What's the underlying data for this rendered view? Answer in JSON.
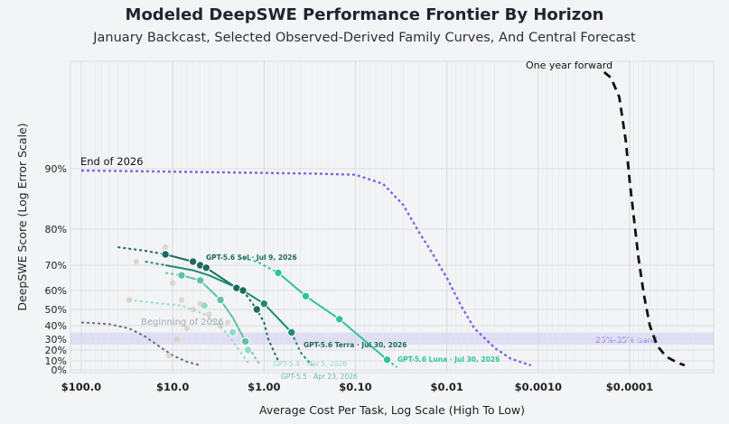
{
  "title": "Modeled DeepSWE Performance Frontier By Horizon",
  "subtitle": "January Backcast, Selected Observed-Derived Family Curves, And Central Forecast",
  "chart_data": {
    "type": "line",
    "xlabel": "Average Cost Per Task, Log Scale (High To Low)",
    "ylabel": "DeepSWE Score (Log Error Scale)",
    "x_scale": "log",
    "x_direction": "reversed (high to low)",
    "xlim": [
      100,
      2e-05
    ],
    "x_ticks": [
      {
        "value": 100,
        "label": "$100.0"
      },
      {
        "value": 10,
        "label": "$10.0"
      },
      {
        "value": 1,
        "label": "$1.00"
      },
      {
        "value": 0.1,
        "label": "$0.10"
      },
      {
        "value": 0.01,
        "label": "$0.01"
      },
      {
        "value": 0.001,
        "label": "$0.0010"
      },
      {
        "value": 0.0001,
        "label": "$0.0001"
      }
    ],
    "y_scale": "log error",
    "y_ticks": [
      {
        "value": 90,
        "label": "90%"
      },
      {
        "value": 80,
        "label": "80%"
      },
      {
        "value": 70,
        "label": "70%"
      },
      {
        "value": 60,
        "label": "60%"
      },
      {
        "value": 50,
        "label": "50%"
      },
      {
        "value": 40,
        "label": "40%"
      },
      {
        "value": 30,
        "label": "30%"
      },
      {
        "value": 20,
        "label": "20%"
      },
      {
        "value": 10,
        "label": "10%"
      },
      {
        "value": 0,
        "label": "0%"
      }
    ],
    "grid": true,
    "band": {
      "label": "25%-35% band",
      "low": 25,
      "high": 35,
      "color": "#8b7cf0"
    },
    "colors": {
      "end2026": "#7c65ea",
      "begin2026": "#6b6b80",
      "year": "#111111",
      "sol": "#1c6b5e",
      "terra": "#1f8a74",
      "luna": "#2cc49a",
      "gpt54": "#8fdcc7",
      "gpt55": "#5fc0a3"
    },
    "series": [
      {
        "name": "One year forward",
        "style": "dashed",
        "x": [
          0.00019,
          0.00016,
          0.00013,
          0.00011,
          0.0001,
          9e-05,
          8e-05,
          7e-05,
          6e-05,
          5e-05,
          4e-05,
          3e-05,
          2.5e-05
        ],
        "y": [
          97,
          96.6,
          95.2,
          92,
          88,
          82,
          72,
          58,
          40,
          24,
          14,
          8,
          5
        ]
      },
      {
        "name": "End of 2026",
        "style": "dotted",
        "x": [
          100,
          30,
          10,
          3,
          1,
          0.3,
          0.1,
          0.05,
          0.03,
          0.02,
          0.015,
          0.01,
          0.007,
          0.005,
          0.003,
          0.002,
          0.0012
        ],
        "y": [
          89.7,
          89.6,
          89.5,
          89.4,
          89.3,
          89.2,
          89,
          87.5,
          84,
          79,
          74,
          65,
          52,
          38,
          22,
          12,
          5
        ]
      },
      {
        "name": "Beginning of 2026",
        "style": "dotted",
        "x": [
          100,
          50,
          30,
          20,
          15,
          10,
          7,
          5
        ],
        "y": [
          42,
          41,
          38,
          32,
          25,
          15,
          9,
          5
        ]
      },
      {
        "name": "GPT-5.6 Sol · Jul 9, 2026",
        "style": "dotted",
        "x": [
          40,
          20,
          12
        ],
        "y": [
          75,
          74,
          73
        ]
      },
      {
        "name": "GPT-5.6 Sol · Jul 9, 2026",
        "style": "solid",
        "x": [
          12,
          6,
          5,
          4.3,
          2,
          1.7
        ],
        "y": [
          73,
          71,
          70,
          69,
          61,
          60
        ]
      },
      {
        "name": "GPT-5.6 Sol · Jul 9, 2026",
        "style": "dotted",
        "x": [
          1.7,
          1.2,
          1,
          0.9,
          0.7
        ],
        "y": [
          60,
          50,
          42,
          30,
          10
        ]
      },
      {
        "name": "GPT-5.6 Terra · Jul 30, 2026",
        "style": "dotted",
        "x": [
          20,
          12
        ],
        "y": [
          71,
          70
        ]
      },
      {
        "name": "GPT-5.6 Terra · Jul 30, 2026",
        "style": "solid",
        "x": [
          12,
          6,
          4,
          1.7,
          1,
          0.5
        ],
        "y": [
          70,
          68,
          66,
          60,
          53,
          35
        ]
      },
      {
        "name": "GPT-5.6 Terra · Jul 30, 2026",
        "style": "dotted",
        "x": [
          0.5,
          0.4,
          0.3
        ],
        "y": [
          35,
          18,
          5
        ]
      },
      {
        "name": "GPT-5.6 Luna · Jul 30, 2026",
        "style": "dotted",
        "x": [
          1.7,
          1.2,
          0.7
        ],
        "y": [
          72,
          71,
          67
        ]
      },
      {
        "name": "GPT-5.6 Luna · Jul 30, 2026",
        "style": "solid",
        "x": [
          0.7,
          0.35,
          0.15,
          0.045
        ],
        "y": [
          67,
          57,
          44,
          11
        ]
      },
      {
        "name": "GPT-5.6 Luna · Jul 30, 2026",
        "style": "dotted",
        "x": [
          0.045,
          0.035
        ],
        "y": [
          11,
          3
        ]
      },
      {
        "name": "GPT-5.4 · Mar 5, 2026",
        "style": "dotted",
        "x": [
          30,
          20,
          8,
          4.5,
          3,
          2.2,
          1.8,
          1.5
        ],
        "y": [
          55,
          54,
          52,
          47,
          40,
          28,
          18,
          8
        ]
      },
      {
        "name": "GPT-5.5 · Apr 23, 2026",
        "style": "dotted",
        "x": [
          12,
          8,
          5,
          3,
          2.2,
          1.6,
          1.3,
          1.1
        ],
        "y": [
          67,
          66,
          64,
          55,
          45,
          28,
          15,
          5
        ]
      },
      {
        "name": "GPT-5.5 · Apr 23, 2026",
        "style": "solid",
        "x": [
          8,
          5,
          3,
          2.2,
          1.6
        ],
        "y": [
          66,
          64,
          55,
          45,
          28
        ]
      }
    ],
    "labels": [
      "One year forward",
      "End of 2026",
      "Beginning of 2026",
      "GPT-5.6 Sol · Jul 9, 2026",
      "GPT-5.6 Terra · Jul 30, 2026",
      "GPT-5.6 Luna · Jul 30, 2026",
      "GPT-5.4 · Mar 5, 2026",
      "GPT-5.5 · Apr 23, 2026"
    ],
    "points": [
      {
        "series": "GPT-5.6 Sol",
        "x": 12,
        "y": 73
      },
      {
        "series": "GPT-5.6 Sol",
        "x": 6,
        "y": 71
      },
      {
        "series": "GPT-5.6 Sol",
        "x": 5,
        "y": 70
      },
      {
        "series": "GPT-5.6 Sol",
        "x": 4.3,
        "y": 69
      },
      {
        "series": "GPT-5.6 Sol",
        "x": 2,
        "y": 61
      },
      {
        "series": "GPT-5.6 Sol",
        "x": 1.7,
        "y": 60
      },
      {
        "series": "GPT-5.6 Sol",
        "x": 1.2,
        "y": 50
      },
      {
        "series": "GPT-5.6 Terra",
        "x": 1,
        "y": 53
      },
      {
        "series": "GPT-5.6 Terra",
        "x": 0.5,
        "y": 35
      },
      {
        "series": "GPT-5.6 Luna",
        "x": 0.7,
        "y": 67
      },
      {
        "series": "GPT-5.6 Luna",
        "x": 0.35,
        "y": 57
      },
      {
        "series": "GPT-5.6 Luna",
        "x": 0.15,
        "y": 44
      },
      {
        "series": "GPT-5.6 Luna",
        "x": 0.045,
        "y": 11
      },
      {
        "series": "GPT-5.5",
        "x": 8,
        "y": 66
      },
      {
        "series": "GPT-5.5",
        "x": 5,
        "y": 64
      },
      {
        "series": "GPT-5.5",
        "x": 3,
        "y": 55
      },
      {
        "series": "GPT-5.5",
        "x": 1.6,
        "y": 28
      },
      {
        "series": "GPT-5.4",
        "x": 4.5,
        "y": 52
      },
      {
        "series": "GPT-5.4",
        "x": 2.2,
        "y": 35
      },
      {
        "series": "GPT-5.4",
        "x": 1.5,
        "y": 20
      },
      {
        "series": "scatter",
        "x": 30,
        "y": 55
      },
      {
        "series": "scatter",
        "x": 25,
        "y": 71
      },
      {
        "series": "scatter",
        "x": 12,
        "y": 75
      },
      {
        "series": "scatter",
        "x": 10,
        "y": 63
      },
      {
        "series": "scatter",
        "x": 8,
        "y": 55
      },
      {
        "series": "scatter",
        "x": 6,
        "y": 50
      },
      {
        "series": "scatter",
        "x": 4,
        "y": 47
      },
      {
        "series": "scatter",
        "x": 3,
        "y": 40
      },
      {
        "series": "scatter",
        "x": 7,
        "y": 38
      },
      {
        "series": "scatter",
        "x": 9,
        "y": 30
      },
      {
        "series": "scatter",
        "x": 11,
        "y": 15
      },
      {
        "series": "scatter",
        "x": 5,
        "y": 53
      },
      {
        "series": "scatter",
        "x": 2.5,
        "y": 42
      }
    ]
  }
}
